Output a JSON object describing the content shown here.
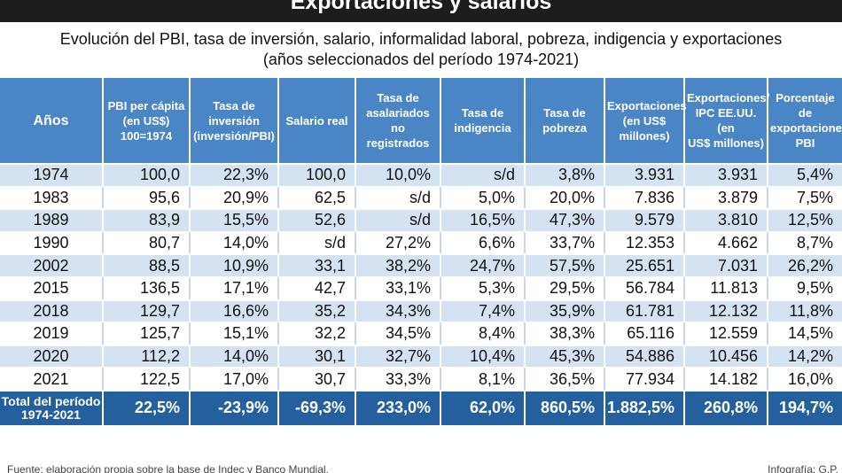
{
  "header": {
    "title": "Exportaciones y salarios",
    "subtitle_line1": "Evolución del PBI, tasa de inversión, salario, informalidad laboral, pobreza, indigencia y exportaciones",
    "subtitle_line2": "(años seleccionados del período 1974-2021)"
  },
  "colors": {
    "title_bar": "#1d1d1d",
    "header_bg": "#4a86c5",
    "row_shade": "#d5e2f1",
    "total_bg": "#245f9e"
  },
  "chart_data": {
    "type": "table",
    "columns": [
      [
        "Años"
      ],
      [
        "PBI per cápita",
        "(en US$)",
        "100=1974"
      ],
      [
        "Tasa de",
        "inversión",
        "(inversión/PBI)"
      ],
      [
        "Salario real"
      ],
      [
        "Tasa de",
        "asalariados",
        "no registrados"
      ],
      [
        "Tasa de",
        "indigencia"
      ],
      [
        "Tasa de",
        "pobreza"
      ],
      [
        "Exportaciones",
        "(en US$",
        "millones)"
      ],
      [
        "Exportaciones/",
        "IPC EE.UU. (en",
        "US$ millones)"
      ],
      [
        "Porcentaje de",
        "exportaciones/",
        "PBI"
      ]
    ],
    "rows": [
      [
        "1974",
        "100,0",
        "22,3%",
        "100,0",
        "10,0%",
        "s/d",
        "3,8%",
        "3.931",
        "3.931",
        "5,4%"
      ],
      [
        "1983",
        "95,6",
        "20,9%",
        "62,5",
        "s/d",
        "5,0%",
        "20,0%",
        "7.836",
        "3.879",
        "7,5%"
      ],
      [
        "1989",
        "83,9",
        "15,5%",
        "52,6",
        "s/d",
        "16,5%",
        "47,3%",
        "9.579",
        "3.810",
        "12,5%"
      ],
      [
        "1990",
        "80,7",
        "14,0%",
        "s/d",
        "27,2%",
        "6,6%",
        "33,7%",
        "12.353",
        "4.662",
        "8,7%"
      ],
      [
        "2002",
        "88,5",
        "10,9%",
        "33,1",
        "38,2%",
        "24,7%",
        "57,5%",
        "25.651",
        "7.031",
        "26,2%"
      ],
      [
        "2015",
        "136,5",
        "17,1%",
        "42,7",
        "33,1%",
        "5,3%",
        "29,5%",
        "56.784",
        "11.813",
        "9,5%"
      ],
      [
        "2018",
        "129,7",
        "16,6%",
        "35,2",
        "34,3%",
        "7,4%",
        "35,9%",
        "61.781",
        "12.132",
        "11,8%"
      ],
      [
        "2019",
        "125,7",
        "15,1%",
        "32,2",
        "34,5%",
        "8,4%",
        "38,3%",
        "65.116",
        "12.559",
        "14,5%"
      ],
      [
        "2020",
        "112,2",
        "14,0%",
        "30,1",
        "32,7%",
        "10,4%",
        "45,3%",
        "54.886",
        "10.456",
        "14,2%"
      ],
      [
        "2021",
        "122,5",
        "17,0%",
        "30,7",
        "33,3%",
        "8,1%",
        "36,5%",
        "77.934",
        "14.182",
        "16,0%"
      ]
    ],
    "total": {
      "label": [
        "Total del período",
        "1974-2021"
      ],
      "values": [
        "22,5%",
        "-23,9%",
        "-69,3%",
        "233,0%",
        "62,0%",
        "860,5%",
        "1.882,5%",
        "260,8%",
        "194,7%"
      ]
    }
  },
  "footer": {
    "source": "Fuente: elaboración propia sobre la base de Indec y Banco Mundial.",
    "credit": "Infografía: G.P."
  }
}
